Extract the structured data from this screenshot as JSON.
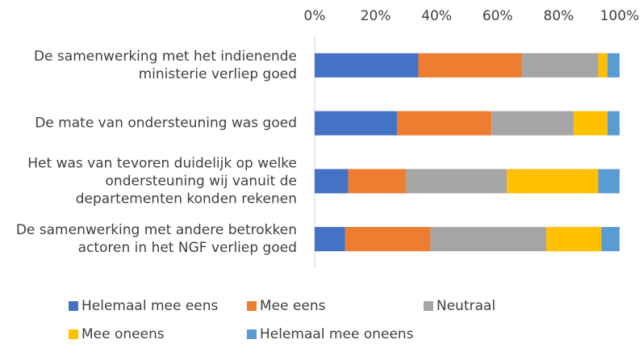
{
  "chart_data": {
    "type": "stacked_bar_horizontal",
    "categories": [
      "De samenwerking met het indienende\nministerie verliep goed",
      "De mate van ondersteuning was goed",
      "Het was van tevoren duidelijk op welke\nondersteuning wij vanuit de\ndepartementen konden rekenen",
      "De samenwerking met andere betrokken\nactoren in het NGF verliep goed"
    ],
    "series": [
      {
        "name": "Helemaal mee eens",
        "color": "#4472c4",
        "values": [
          34,
          27,
          11,
          10
        ]
      },
      {
        "name": "Mee eens",
        "color": "#ed7d31",
        "values": [
          34,
          31,
          19,
          28
        ]
      },
      {
        "name": "Neutraal",
        "color": "#a5a5a5",
        "values": [
          25,
          27,
          33,
          38
        ]
      },
      {
        "name": "Mee oneens",
        "color": "#ffc000",
        "values": [
          3,
          11,
          30,
          18
        ]
      },
      {
        "name": "Helemaal mee oneens",
        "color": "#5b9bd5",
        "values": [
          4,
          4,
          7,
          6
        ]
      }
    ],
    "xlim": [
      0,
      100
    ],
    "xticks": [
      {
        "value": 0,
        "label": "0%"
      },
      {
        "value": 20,
        "label": "20%"
      },
      {
        "value": 40,
        "label": "40%"
      },
      {
        "value": 60,
        "label": "60%"
      },
      {
        "value": 80,
        "label": "80%"
      },
      {
        "value": 100,
        "label": "100%"
      }
    ],
    "grid": false,
    "legend": "bottom"
  }
}
